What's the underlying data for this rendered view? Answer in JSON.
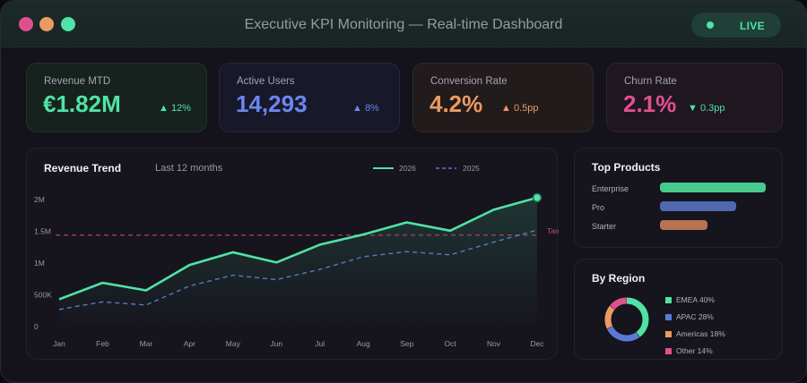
{
  "window": {
    "title": "Executive KPI Monitoring — Real-time Dashboard",
    "live_label": "LIVE"
  },
  "kpis": [
    {
      "label": "Revenue MTD",
      "value": "€1.82M",
      "delta": "▲ 12%",
      "value_color": "#4fe3a5",
      "delta_color": "#4fe3a5"
    },
    {
      "label": "Active Users",
      "value": "14,293",
      "delta": "▲ 8%",
      "value_color": "#6b86ef",
      "delta_color": "#6b86ef"
    },
    {
      "label": "Conversion Rate",
      "value": "4.2%",
      "delta": "▲ 0.5pp",
      "value_color": "#eb9a62",
      "delta_color": "#eb9a62"
    },
    {
      "label": "Churn Rate",
      "value": "2.1%",
      "delta": "▼ 0.3pp",
      "value_color": "#e0508f",
      "delta_color": "#4fe3a5"
    }
  ],
  "trend": {
    "title": "Revenue Trend",
    "subtitle": "Last 12 months"
  },
  "chart_data": {
    "type": "line",
    "categories": [
      "Jan",
      "Feb",
      "Mar",
      "Apr",
      "May",
      "Jun",
      "Jul",
      "Aug",
      "Sep",
      "Oct",
      "Nov",
      "Dec"
    ],
    "series": [
      {
        "name": "2026",
        "values": [
          0.43,
          0.69,
          0.57,
          0.97,
          1.17,
          1.01,
          1.29,
          1.45,
          1.64,
          1.51,
          1.84,
          2.03
        ],
        "color": "#4fe3a5",
        "style": "solid"
      },
      {
        "name": "2025",
        "values": [
          0.27,
          0.39,
          0.34,
          0.64,
          0.81,
          0.74,
          0.9,
          1.1,
          1.18,
          1.13,
          1.33,
          1.52
        ],
        "color": "#5a78c8",
        "style": "dashed"
      }
    ],
    "target": {
      "label": "Target",
      "value": 1.44,
      "color": "#c2487f"
    },
    "yticks": [
      {
        "value": 0,
        "label": "0"
      },
      {
        "value": 0.5,
        "label": "500K"
      },
      {
        "value": 1,
        "label": "1M"
      },
      {
        "value": 1.5,
        "label": "1.5M"
      },
      {
        "value": 2,
        "label": "2M"
      }
    ],
    "ylim": [
      0,
      2
    ],
    "unit": "millions €",
    "legend_position": "top-right",
    "grid": false
  },
  "top_products": {
    "title": "Top Products",
    "items": [
      {
        "label": "Enterprise",
        "share": 1.0,
        "color": "#48c98d"
      },
      {
        "label": "Pro",
        "share": 0.72,
        "color": "#4f68ae"
      },
      {
        "label": "Starter",
        "share": 0.45,
        "color": "#b67452"
      }
    ]
  },
  "region": {
    "title": "By Region",
    "items": [
      {
        "label": "EMEA 40%",
        "pct": 40,
        "color": "#4fe3a5"
      },
      {
        "label": "APAC 28%",
        "pct": 28,
        "color": "#5a7ad6"
      },
      {
        "label": "Americas 18%",
        "pct": 18,
        "color": "#eb9a62"
      },
      {
        "label": "Other 14%",
        "pct": 14,
        "color": "#e0508f"
      }
    ]
  }
}
